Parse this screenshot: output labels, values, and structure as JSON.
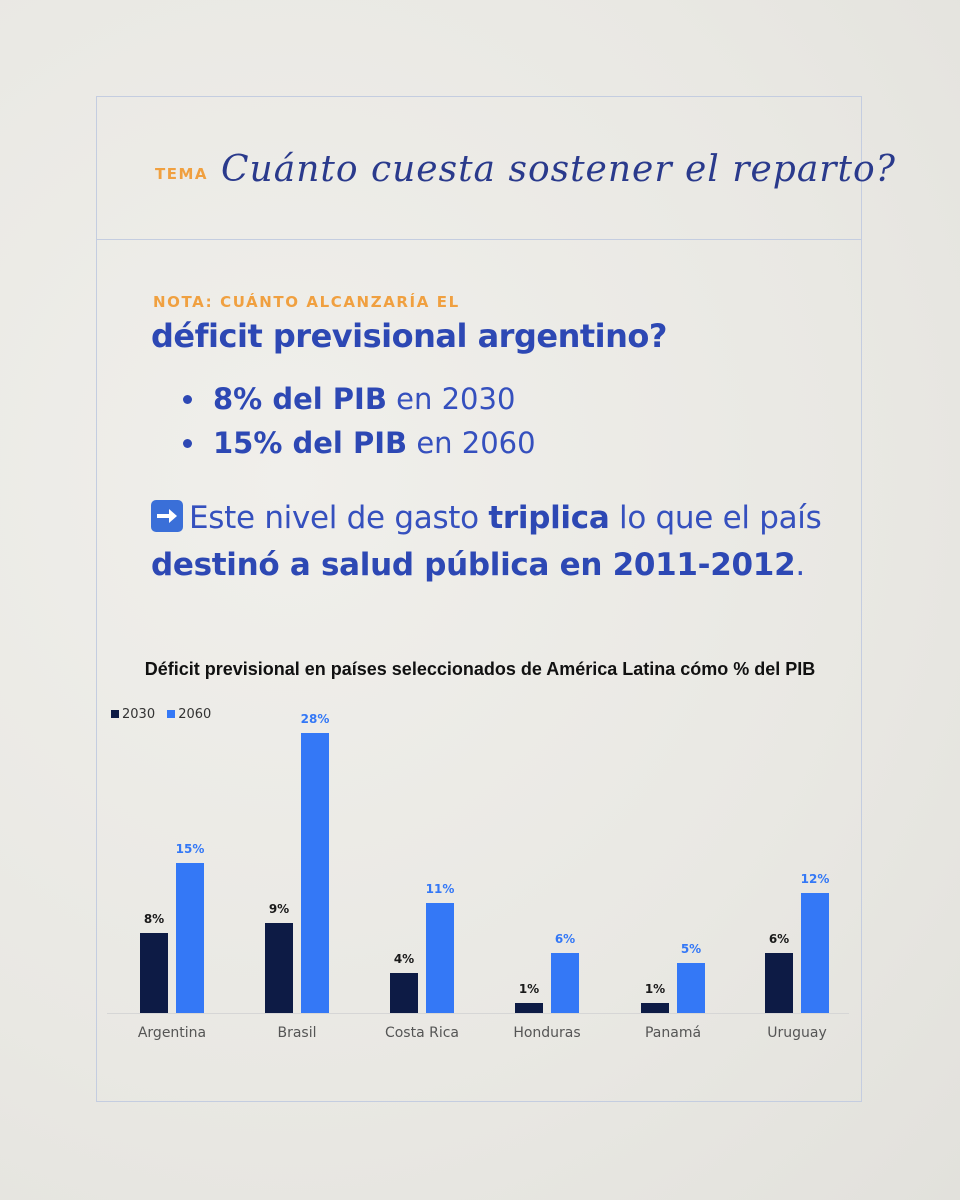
{
  "header": {
    "tema_label": "TEMA",
    "tema_title": "Cuánto cuesta sostener el reparto?"
  },
  "nota": {
    "label": "NOTA: CUÁNTO ALCANZARÍA EL",
    "title": "déficit previsional argentino?",
    "bullets": [
      {
        "bold": "8% del PIB",
        "rest": " en 2030"
      },
      {
        "bold": "15% del PIB",
        "rest": " en 2060"
      }
    ]
  },
  "body": {
    "icon": "right-arrow-icon",
    "p1": "Este nivel de gasto ",
    "b1": "triplica",
    "p2": " lo que el país ",
    "b2": "destinó a salud pública en 2011-2012",
    "p3": "."
  },
  "chart_data": {
    "type": "bar",
    "title": "Déficit previsional en países seleccionados de América Latina cómo % del PIB",
    "categories": [
      "Argentina",
      "Brasil",
      "Costa Rica",
      "Honduras",
      "Panamá",
      "Uruguay"
    ],
    "series": [
      {
        "name": "2030",
        "color": "#0d1b45",
        "values": [
          8,
          9,
          4,
          1,
          1,
          6
        ],
        "labels": [
          "8%",
          "9%",
          "4%",
          "1%",
          "1%",
          "6%"
        ]
      },
      {
        "name": "2060",
        "color": "#3478f6",
        "values": [
          15,
          28,
          11,
          6,
          5,
          12
        ],
        "labels": [
          "15%",
          "28%",
          "11%",
          "6%",
          "5%",
          "12%"
        ]
      }
    ],
    "ylim": [
      0,
      28
    ],
    "legend": "top-left",
    "grid": false
  }
}
